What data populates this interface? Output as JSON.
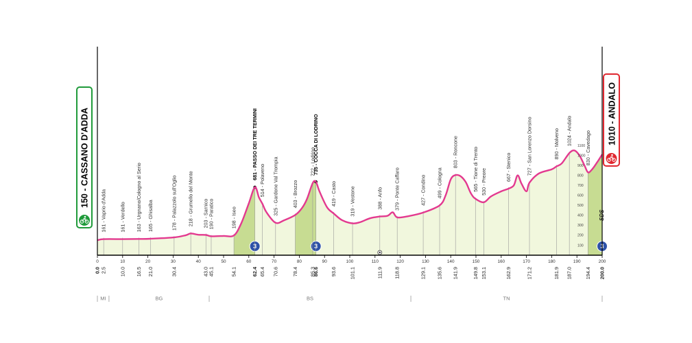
{
  "colors": {
    "profile_line": "#e3398f",
    "area_fill": "#f1f7dd",
    "climb_fill": "#c7dc92",
    "start_box": "#1f9a3a",
    "finish_box": "#e0272f",
    "climb_badge": "#2e52a8",
    "grid_line": "#9a9a9a",
    "axis": "#000000"
  },
  "start": {
    "label": "150 - CASSANO D'ADDA",
    "icon": "cyclist-start-icon"
  },
  "finish": {
    "label": "1010 - ANDALO",
    "icon": "cyclist-finish-icon"
  },
  "sds_label": "SDS",
  "chart_data": {
    "type": "area",
    "title": "",
    "xlabel": "km",
    "ylabel": "m",
    "xlim": [
      0,
      200
    ],
    "ylim": [
      0,
      1100
    ],
    "axis_ticks": [
      "0",
      "10",
      "20",
      "30",
      "40",
      "50",
      "60",
      "70",
      "80",
      "90",
      "100",
      "110",
      "120",
      "130",
      "140",
      "150",
      "160",
      "170",
      "180",
      "190",
      "200"
    ],
    "right_scale_ticks": [
      "1100",
      "1000",
      "900",
      "800",
      "700",
      "600",
      "500",
      "400",
      "300",
      "200",
      "100"
    ],
    "profile": [
      [
        0,
        150
      ],
      [
        2.5,
        161
      ],
      [
        10,
        161
      ],
      [
        16.5,
        163
      ],
      [
        21,
        165
      ],
      [
        30.4,
        178
      ],
      [
        35,
        200
      ],
      [
        37,
        218
      ],
      [
        40,
        205
      ],
      [
        43,
        203
      ],
      [
        45.1,
        190
      ],
      [
        50,
        193
      ],
      [
        54.1,
        198
      ],
      [
        57,
        320
      ],
      [
        60,
        520
      ],
      [
        62.4,
        681
      ],
      [
        64,
        580
      ],
      [
        65.4,
        514
      ],
      [
        67,
        430
      ],
      [
        70.6,
        325
      ],
      [
        74,
        350
      ],
      [
        78.4,
        403
      ],
      [
        81,
        470
      ],
      [
        83,
        560
      ],
      [
        85.3,
        722
      ],
      [
        86.6,
        735
      ],
      [
        88,
        640
      ],
      [
        91,
        480
      ],
      [
        93.6,
        419
      ],
      [
        97,
        350
      ],
      [
        101.1,
        319
      ],
      [
        104,
        330
      ],
      [
        108,
        370
      ],
      [
        111.9,
        388
      ],
      [
        115,
        395
      ],
      [
        117,
        430
      ],
      [
        118.8,
        379
      ],
      [
        123,
        390
      ],
      [
        129.1,
        427
      ],
      [
        135.6,
        499
      ],
      [
        138,
        600
      ],
      [
        140,
        760
      ],
      [
        141.9,
        803
      ],
      [
        144,
        790
      ],
      [
        146,
        730
      ],
      [
        148,
        620
      ],
      [
        149.8,
        565
      ],
      [
        153.1,
        530
      ],
      [
        156,
        590
      ],
      [
        160,
        640
      ],
      [
        162.9,
        667
      ],
      [
        165,
        700
      ],
      [
        166.5,
        800
      ],
      [
        168,
        720
      ],
      [
        170,
        640
      ],
      [
        171.2,
        727
      ],
      [
        175,
        820
      ],
      [
        180,
        860
      ],
      [
        181.9,
        890
      ],
      [
        184,
        920
      ],
      [
        187,
        1024
      ],
      [
        189,
        1050
      ],
      [
        191,
        1000
      ],
      [
        193,
        900
      ],
      [
        194.4,
        830
      ],
      [
        196,
        860
      ],
      [
        198,
        930
      ],
      [
        200,
        1010
      ]
    ],
    "climbs": [
      {
        "range": [
          54.1,
          62.4
        ],
        "category": "3"
      },
      {
        "range": [
          78.4,
          86.6
        ],
        "category": "3"
      },
      {
        "range": [
          194.4,
          200
        ],
        "category": "3"
      }
    ],
    "intermediate_sprint": {
      "km": 111.9
    },
    "waypoints": [
      {
        "label": "161 - Vaprio d'Adda",
        "km": 2.5,
        "alt": 161,
        "km_label": "2.5"
      },
      {
        "label": "161 - Verdello",
        "km": 10.0,
        "alt": 161,
        "km_label": "10.0"
      },
      {
        "label": "163 - Urgnano/Cologno al Serio",
        "km": 16.5,
        "alt": 163,
        "km_label": "16.5"
      },
      {
        "label": "165 - Ghisalba",
        "km": 21.0,
        "alt": 165,
        "km_label": "21.0"
      },
      {
        "label": "178 - Palazzolo sull'Oglio",
        "km": 30.4,
        "alt": 178,
        "km_label": "30.4"
      },
      {
        "label": "218 - Grumello del Monte",
        "km": 37.0,
        "alt": 218,
        "km_label": ""
      },
      {
        "label": "203 - Sarnico",
        "km": 43.0,
        "alt": 203,
        "km_label": "43.0"
      },
      {
        "label": "190 - Paratico",
        "km": 45.1,
        "alt": 190,
        "km_label": "45.1"
      },
      {
        "label": "198 - Iseo",
        "km": 54.1,
        "alt": 198,
        "km_label": "54.1"
      },
      {
        "label": "681 - PASSO DEI TRE TERMINI",
        "km": 62.4,
        "alt": 681,
        "km_label": "62.4",
        "bold": true,
        "summit": true
      },
      {
        "label": "514 - Polaveno",
        "km": 65.4,
        "alt": 514,
        "km_label": "65.4"
      },
      {
        "label": "325 - Gardone Val Trompia",
        "km": 70.6,
        "alt": 325,
        "km_label": "70.6"
      },
      {
        "label": "403 - Brozzo",
        "km": 78.4,
        "alt": 403,
        "km_label": "78.4"
      },
      {
        "label": "722 - Lodrino",
        "km": 85.3,
        "alt": 722,
        "km_label": "85.3"
      },
      {
        "label": "735 - COCCA DI LODRINO",
        "km": 86.6,
        "alt": 735,
        "km_label": "86.6",
        "bold": true,
        "summit": true
      },
      {
        "label": "419 - Casto",
        "km": 93.6,
        "alt": 419,
        "km_label": "93.6"
      },
      {
        "label": "319 - Vestone",
        "km": 101.1,
        "alt": 319,
        "km_label": "101.1"
      },
      {
        "label": "388 - Anfo",
        "km": 111.9,
        "alt": 388,
        "km_label": "111.9"
      },
      {
        "label": "379 - Ponte Caffaro",
        "km": 118.8,
        "alt": 379,
        "km_label": "118.8"
      },
      {
        "label": "427 - Condino",
        "km": 129.1,
        "alt": 427,
        "km_label": "129.1"
      },
      {
        "label": "499 - Cologna",
        "km": 135.6,
        "alt": 499,
        "km_label": "135.6"
      },
      {
        "label": "803 - Roncone",
        "km": 141.9,
        "alt": 803,
        "km_label": "141.9"
      },
      {
        "label": "565 - Tione di Trento",
        "km": 149.8,
        "alt": 565,
        "km_label": "149.8"
      },
      {
        "label": "530 - Preore",
        "km": 153.1,
        "alt": 530,
        "km_label": "153.1"
      },
      {
        "label": "667 - Stenico",
        "km": 162.9,
        "alt": 667,
        "km_label": "162.9"
      },
      {
        "label": "727 - San Lorenzo Dorsino",
        "km": 171.2,
        "alt": 727,
        "km_label": "171.2"
      },
      {
        "label": "890 - Molveno",
        "km": 181.9,
        "alt": 890,
        "km_label": "181.9"
      },
      {
        "label": "1024 - Andalo",
        "km": 187.0,
        "alt": 1024,
        "km_label": "187.0"
      },
      {
        "label": "830 - Cavedago",
        "km": 194.4,
        "alt": 830,
        "km_label": "194.4"
      }
    ],
    "endpoint_km_labels": [
      "0.0",
      "200.0"
    ],
    "provinces": [
      {
        "label": "MI",
        "from": 0,
        "to": 4.6
      },
      {
        "label": "BG",
        "from": 4.6,
        "to": 44.3
      },
      {
        "label": "BS",
        "from": 44.3,
        "to": 124.2
      },
      {
        "label": "TN",
        "from": 124.2,
        "to": 200
      }
    ]
  }
}
